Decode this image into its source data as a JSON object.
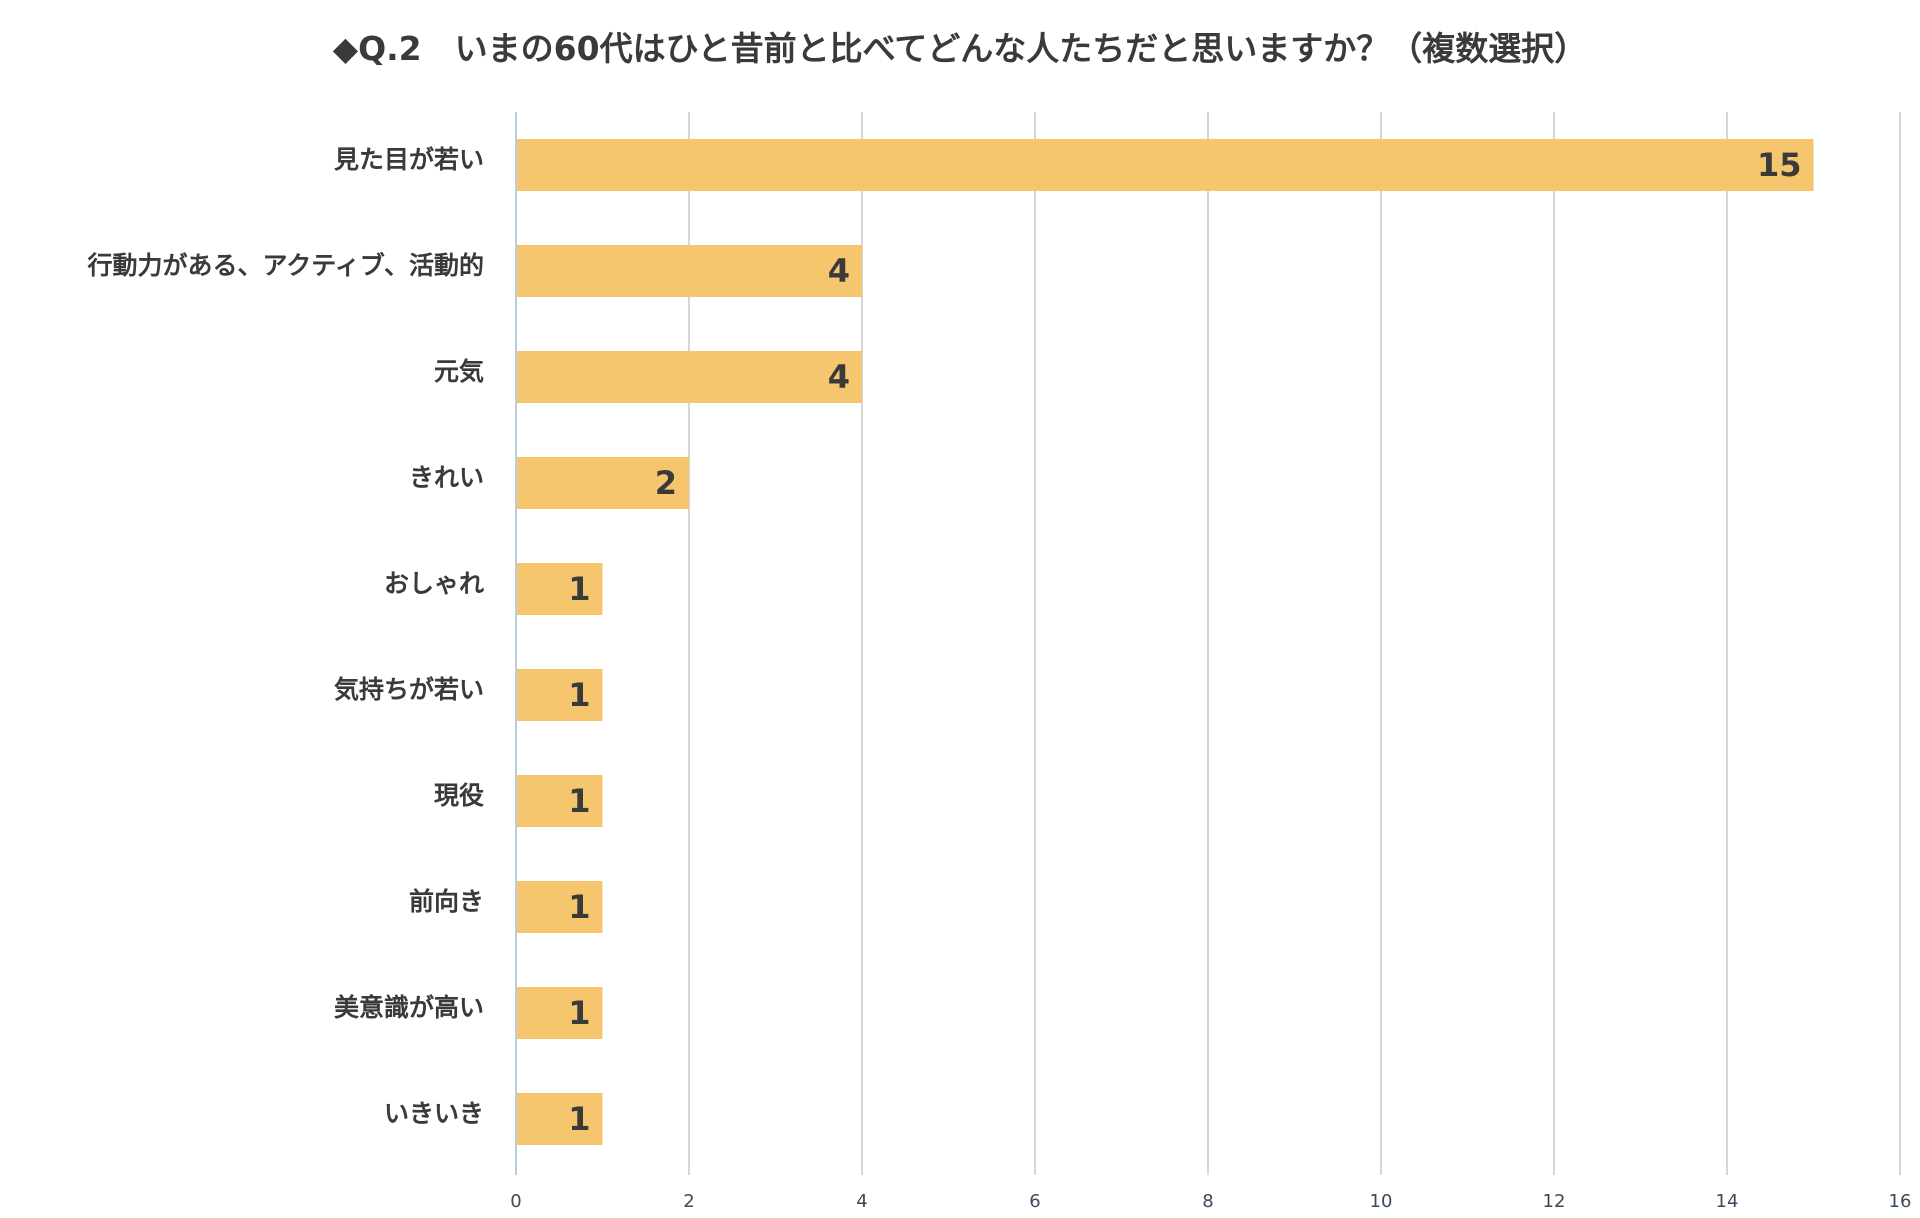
{
  "chart_data": {
    "type": "bar",
    "orientation": "horizontal",
    "title": "◆Q.2　いまの60代はひと昔前と比べてどんな人たちだと思いますか？（複数選択）",
    "categories": [
      "見た目が若い",
      "行動力がある、アクティブ、活動的",
      "元気",
      "きれい",
      "おしゃれ",
      "気持ちが若い",
      "現役",
      "前向き",
      "美意識が高い",
      "いきいき"
    ],
    "values": [
      15,
      4,
      4,
      2,
      1,
      1,
      1,
      1,
      1,
      1
    ],
    "xlim": [
      0,
      16
    ],
    "x_ticks": [
      "0",
      "2",
      "4",
      "6",
      "8",
      "10",
      "12",
      "14",
      "16"
    ],
    "grid": true,
    "data_labels": true,
    "bar_color": "#f6c66f",
    "grid_color": "#c8c8c8",
    "axis_color": "#b8cde0",
    "text_color": "#3a3a3a"
  }
}
